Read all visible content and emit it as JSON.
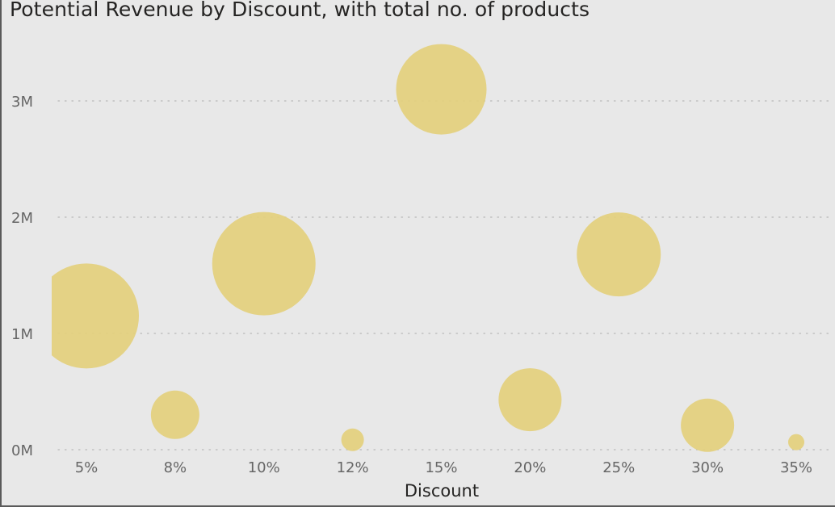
{
  "chart_data": {
    "type": "scatter",
    "title": "Potential Revenue by Discount, with total no. of products",
    "xlabel": "Discount",
    "ylabel": "",
    "categories": [
      "5%",
      "8%",
      "10%",
      "12%",
      "15%",
      "20%",
      "25%",
      "30%",
      "35%"
    ],
    "y_ticks": [
      "0M",
      "1M",
      "2M",
      "3M"
    ],
    "ylim": [
      0,
      3500000
    ],
    "grid": "horizontal dotted",
    "legend": "none",
    "bubble_color": "#e3cf7c",
    "points": [
      {
        "x": "5%",
        "y": 1150000,
        "size": 65
      },
      {
        "x": "8%",
        "y": 300000,
        "size": 30
      },
      {
        "x": "10%",
        "y": 1600000,
        "size": 64
      },
      {
        "x": "12%",
        "y": 85000,
        "size": 14
      },
      {
        "x": "15%",
        "y": 3100000,
        "size": 56
      },
      {
        "x": "20%",
        "y": 430000,
        "size": 39
      },
      {
        "x": "25%",
        "y": 1680000,
        "size": 52
      },
      {
        "x": "30%",
        "y": 210000,
        "size": 33
      },
      {
        "x": "35%",
        "y": 65000,
        "size": 10
      }
    ]
  }
}
